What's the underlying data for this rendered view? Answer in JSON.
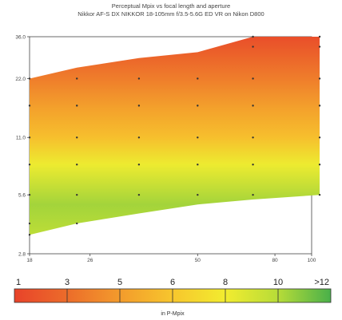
{
  "chart_data": {
    "type": "heatmap",
    "title_lines": [
      "Perceptual Mpix vs focal length and aperture",
      "Nikkor AF-S DX NIKKOR 18-105mm f/3.5-5.6G ED VR on Nikon D800"
    ],
    "xlabel": "",
    "ylabel": "",
    "x_scale": "log",
    "y_scale": "log",
    "xlim": [
      18,
      100
    ],
    "ylim": [
      2.8,
      36
    ],
    "x_ticks": [
      {
        "value": 18,
        "label": "18"
      },
      {
        "value": 26,
        "label": "26"
      },
      {
        "value": 50,
        "label": "50"
      },
      {
        "value": 80,
        "label": "80"
      },
      {
        "value": 100,
        "label": "100"
      }
    ],
    "y_ticks": [
      {
        "value": 2.8,
        "label": "2.8"
      },
      {
        "value": 5.6,
        "label": "5.6"
      },
      {
        "value": 11,
        "label": "11.0"
      },
      {
        "value": 22,
        "label": "22.0"
      },
      {
        "value": 36,
        "label": "36.0"
      }
    ],
    "focal_lengths": [
      18,
      24,
      35,
      50,
      70,
      105
    ],
    "max_aperture": [
      3.5,
      4.0,
      4.5,
      5.0,
      5.3,
      5.6
    ],
    "min_aperture": [
      22,
      25,
      28,
      30,
      36,
      36
    ],
    "aperture_stops": [
      3.5,
      4.0,
      5.6,
      8.0,
      11,
      16,
      22,
      32,
      36
    ],
    "value_stops": [
      {
        "aperture": 3.5,
        "pmpix": 10
      },
      {
        "aperture": 5.0,
        "pmpix": 10.5
      },
      {
        "aperture": 8.0,
        "pmpix": 8.5
      },
      {
        "aperture": 11,
        "pmpix": 6.2
      },
      {
        "aperture": 16,
        "pmpix": 4.8
      },
      {
        "aperture": 22,
        "pmpix": 3.5
      },
      {
        "aperture": 36,
        "pmpix": 1.5
      }
    ],
    "colorbar": {
      "labels": [
        "1",
        "3",
        "5",
        "6",
        "8",
        "10",
        ">12"
      ],
      "unit": "in P-Mpix",
      "colors": [
        "#e8432a",
        "#ec6c2a",
        "#f39b2c",
        "#f7c62d",
        "#f2ec2f",
        "#b7dc38",
        "#49b04a"
      ]
    }
  }
}
